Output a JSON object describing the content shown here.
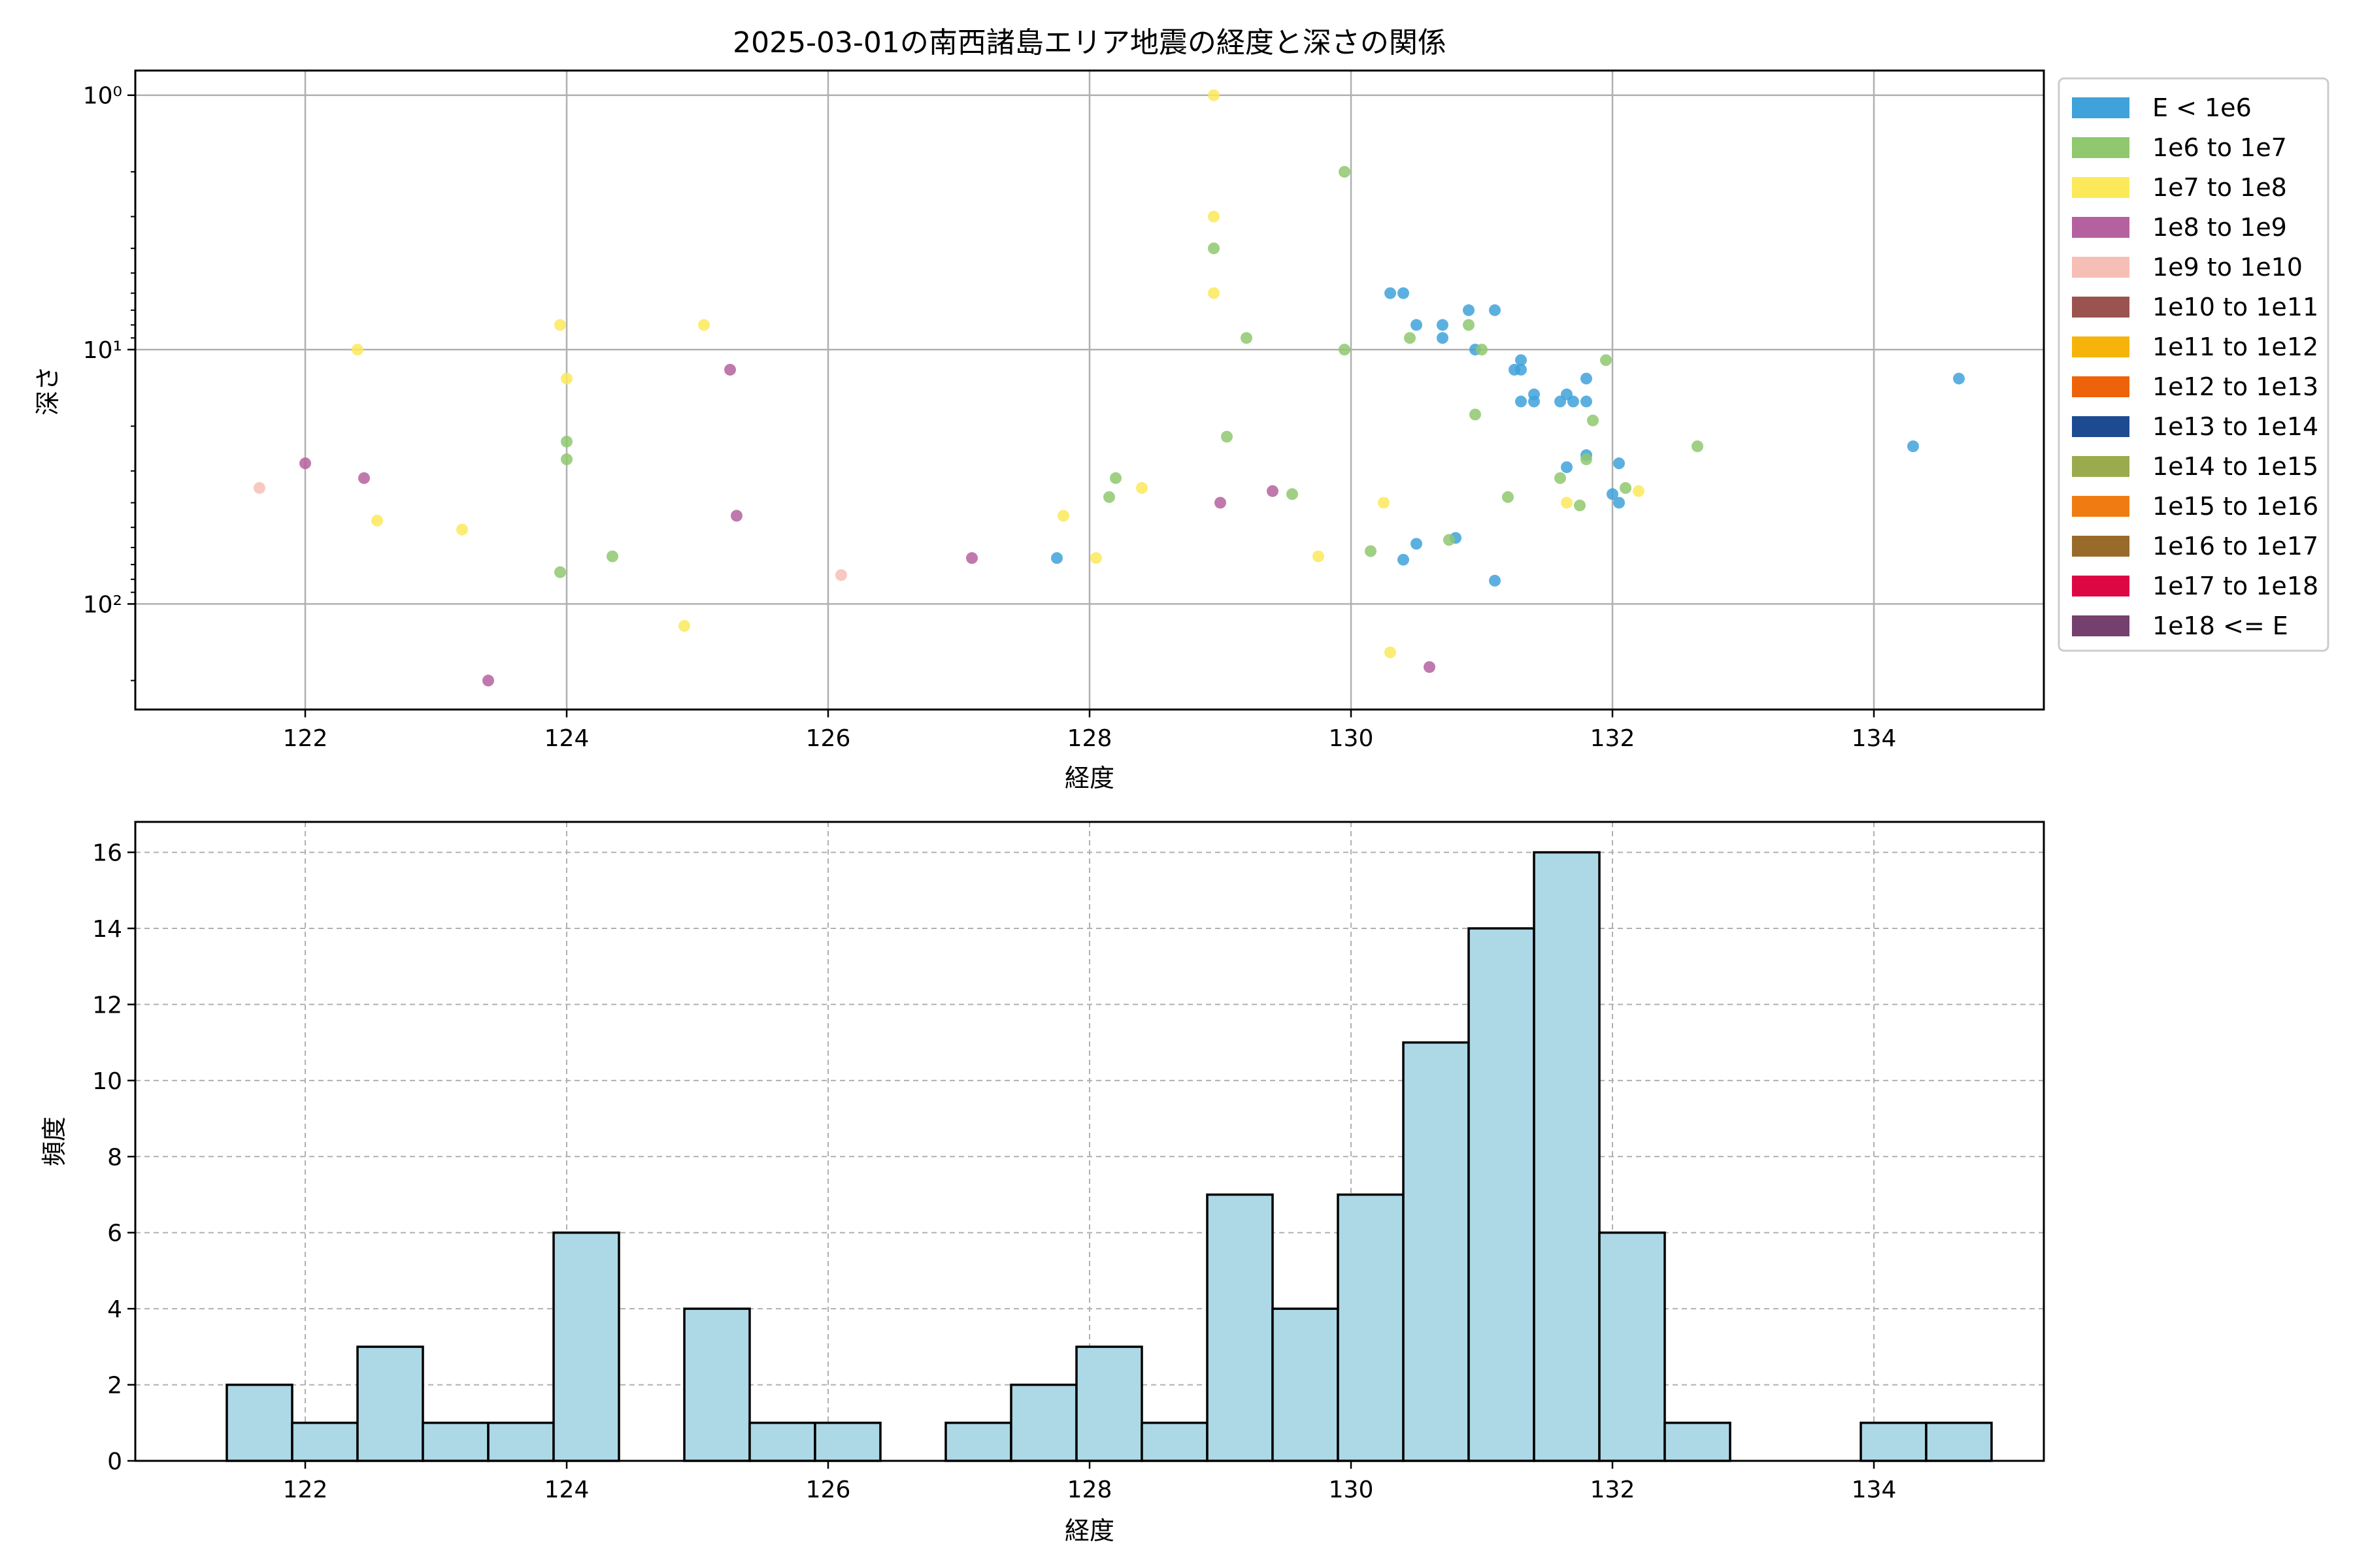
{
  "chart_data": [
    {
      "type": "scatter",
      "title": "2025-03-01の南西諸島エリア地震の経度と深さの関係",
      "xlabel": "経度",
      "ylabel": "深さ",
      "xlim": [
        120.7,
        135.3
      ],
      "ylim": [
        260,
        0.8
      ],
      "yscale": "log-inverted",
      "grid": true,
      "legend_position": "outside-right",
      "x_ticks": [
        122,
        124,
        126,
        128,
        130,
        132,
        134
      ],
      "y_ticks": [
        {
          "value": 1,
          "label": "10⁰"
        },
        {
          "value": 10,
          "label": "10¹"
        },
        {
          "value": 100,
          "label": "10²"
        }
      ],
      "legend": [
        {
          "label": "E < 1e6",
          "color": "#3fa2da"
        },
        {
          "label": "1e6 to 1e7",
          "color": "#8fc86e"
        },
        {
          "label": "1e7 to 1e8",
          "color": "#fce95a"
        },
        {
          "label": "1e8 to 1e9",
          "color": "#b5619f"
        },
        {
          "label": "1e9 to 1e10",
          "color": "#f6bfb6"
        },
        {
          "label": "1e10 to 1e11",
          "color": "#9b534f"
        },
        {
          "label": "1e11 to 1e12",
          "color": "#f6b40a"
        },
        {
          "label": "1e12 to 1e13",
          "color": "#ee6309"
        },
        {
          "label": "1e13 to 1e14",
          "color": "#1d4b92"
        },
        {
          "label": "1e14 to 1e15",
          "color": "#9aab4e"
        },
        {
          "label": "1e15 to 1e16",
          "color": "#ef7c12"
        },
        {
          "label": "1e16 to 1e17",
          "color": "#986b2a"
        },
        {
          "label": "1e17 to 1e18",
          "color": "#dd0843"
        },
        {
          "label": "1e18 <= E",
          "color": "#753f6e"
        }
      ],
      "series": [
        {
          "name": "E < 1e6",
          "color": "#3fa2da",
          "points": [
            [
              127.75,
              66
            ],
            [
              130.3,
              6
            ],
            [
              130.4,
              6
            ],
            [
              130.5,
              8
            ],
            [
              130.7,
              8
            ],
            [
              130.7,
              9
            ],
            [
              130.9,
              7
            ],
            [
              131.1,
              7
            ],
            [
              130.95,
              10
            ],
            [
              131.25,
              12
            ],
            [
              131.3,
              11
            ],
            [
              131.3,
              12
            ],
            [
              131.4,
              15
            ],
            [
              131.4,
              16
            ],
            [
              131.3,
              16
            ],
            [
              131.6,
              16
            ],
            [
              131.65,
              15
            ],
            [
              131.7,
              16
            ],
            [
              131.8,
              16
            ],
            [
              131.8,
              13
            ],
            [
              131.65,
              29
            ],
            [
              131.8,
              26
            ],
            [
              132.05,
              28
            ],
            [
              132.0,
              37
            ],
            [
              132.05,
              40
            ],
            [
              130.4,
              67
            ],
            [
              130.5,
              58
            ],
            [
              130.8,
              55
            ],
            [
              131.1,
              81
            ],
            [
              134.3,
              24
            ],
            [
              134.65,
              13
            ]
          ]
        },
        {
          "name": "1e6 to 1e7",
          "color": "#8fc86e",
          "points": [
            [
              123.95,
              75
            ],
            [
              124.0,
              23
            ],
            [
              124.0,
              27
            ],
            [
              124.35,
              65
            ],
            [
              128.15,
              38
            ],
            [
              128.2,
              32
            ],
            [
              129.05,
              22
            ],
            [
              129.2,
              9
            ],
            [
              128.95,
              4
            ],
            [
              129.95,
              2
            ],
            [
              129.95,
              10
            ],
            [
              129.55,
              37
            ],
            [
              130.15,
              62
            ],
            [
              130.45,
              9
            ],
            [
              130.75,
              56
            ],
            [
              130.9,
              8
            ],
            [
              131.0,
              10
            ],
            [
              130.95,
              18
            ],
            [
              131.2,
              38
            ],
            [
              131.6,
              32
            ],
            [
              131.75,
              41
            ],
            [
              131.8,
              27
            ],
            [
              131.85,
              19
            ],
            [
              131.95,
              11
            ],
            [
              132.1,
              35
            ],
            [
              132.65,
              24
            ]
          ]
        },
        {
          "name": "1e7 to 1e8",
          "color": "#fce95a",
          "points": [
            [
              122.4,
              10
            ],
            [
              122.55,
              47
            ],
            [
              123.2,
              51
            ],
            [
              123.95,
              8
            ],
            [
              124.0,
              13
            ],
            [
              124.9,
              122
            ],
            [
              125.05,
              8
            ],
            [
              127.8,
              45
            ],
            [
              128.05,
              66
            ],
            [
              128.4,
              35
            ],
            [
              128.95,
              1.0
            ],
            [
              128.95,
              3
            ],
            [
              128.95,
              6
            ],
            [
              129.75,
              65
            ],
            [
              130.25,
              40
            ],
            [
              130.3,
              155
            ],
            [
              131.65,
              40
            ],
            [
              132.2,
              36
            ]
          ]
        },
        {
          "name": "1e8 to 1e9",
          "color": "#b5619f",
          "points": [
            [
              122.0,
              28
            ],
            [
              122.45,
              32
            ],
            [
              123.4,
              200
            ],
            [
              125.25,
              12
            ],
            [
              125.3,
              45
            ],
            [
              127.1,
              66
            ],
            [
              129.0,
              40
            ],
            [
              129.4,
              36
            ],
            [
              130.6,
              177
            ]
          ]
        },
        {
          "name": "1e9 to 1e10",
          "color": "#f6bfb6",
          "points": [
            [
              121.65,
              35
            ],
            [
              126.1,
              77
            ]
          ]
        }
      ]
    },
    {
      "type": "histogram",
      "xlabel": "経度",
      "ylabel": "頻度",
      "xlim": [
        120.7,
        135.3
      ],
      "ylim": [
        0,
        16.8
      ],
      "grid": true,
      "bar_color": "#add8e6",
      "x_ticks": [
        122,
        124,
        126,
        128,
        130,
        132,
        134
      ],
      "y_ticks": [
        0,
        2,
        4,
        6,
        8,
        10,
        12,
        14,
        16
      ],
      "bin_start": 121.4,
      "bin_width": 0.5,
      "counts": [
        2,
        1,
        3,
        1,
        1,
        6,
        0,
        4,
        1,
        1,
        0,
        1,
        2,
        3,
        1,
        7,
        4,
        7,
        11,
        14,
        16,
        6,
        1,
        0,
        0,
        1,
        1
      ]
    }
  ]
}
